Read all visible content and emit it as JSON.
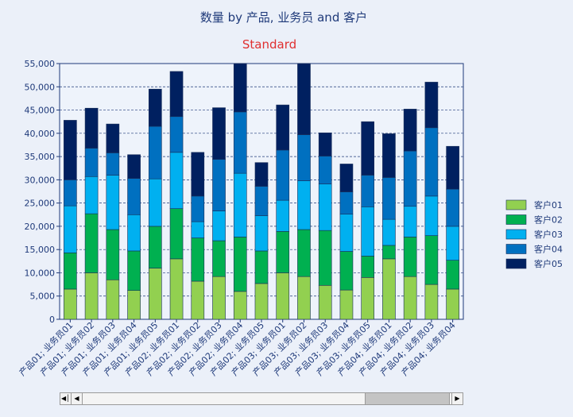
{
  "chart_data": {
    "type": "bar",
    "stacked": true,
    "title": "数量 by 产品, 业务员 and 客户",
    "subtitle": "Standard",
    "xlabel": "",
    "ylabel": "",
    "ylim": [
      0,
      55000
    ],
    "yticks": [
      "0",
      "5,000",
      "10,000",
      "15,000",
      "20,000",
      "25,000",
      "30,000",
      "35,000",
      "40,000",
      "45,000",
      "50,000",
      "55,000"
    ],
    "grid": true,
    "legend_position": "right",
    "categories": [
      "产品01; 业务员01",
      "产品01; 业务员02",
      "产品01; 业务员03",
      "产品01; 业务员04",
      "产品01; 业务员05",
      "产品02; 业务员01",
      "产品02; 业务员02",
      "产品02; 业务员03",
      "产品02; 业务员04",
      "产品02; 业务员05",
      "产品03; 业务员01",
      "产品03; 业务员02",
      "产品03; 业务员03",
      "产品03; 业务员04",
      "产品03; 业务员05",
      "产品04; 业务员01",
      "产品04; 业务员02",
      "产品04; 业务员03",
      "产品04; 业务员04"
    ],
    "series": [
      {
        "name": "客户01",
        "color": "#92d050",
        "values": [
          6500,
          10000,
          8500,
          6200,
          11000,
          13000,
          8200,
          9200,
          6000,
          7700,
          10000,
          9200,
          7300,
          6300,
          9000,
          13000,
          9200,
          7500,
          6500
        ]
      },
      {
        "name": "客户02",
        "color": "#00b050",
        "values": [
          7800,
          12700,
          10800,
          8500,
          9000,
          10800,
          9300,
          7700,
          11700,
          7000,
          8900,
          10100,
          11800,
          8300,
          4600,
          2900,
          8500,
          10500,
          6200
        ]
      },
      {
        "name": "客户03",
        "color": "#00b0f0",
        "values": [
          10100,
          8000,
          11700,
          7800,
          10200,
          12100,
          3500,
          6400,
          13700,
          7600,
          6700,
          10500,
          10000,
          8000,
          10600,
          5600,
          6600,
          8500,
          7300
        ]
      },
      {
        "name": "客户04",
        "color": "#0070c0",
        "values": [
          5600,
          6100,
          4800,
          7800,
          11300,
          7700,
          5500,
          11100,
          13200,
          6300,
          10800,
          9900,
          6000,
          4800,
          6800,
          9000,
          11900,
          14700,
          8000
        ]
      },
      {
        "name": "客户05",
        "color": "#002060",
        "values": [
          12800,
          8600,
          6200,
          5100,
          8000,
          9700,
          9400,
          11100,
          11000,
          5100,
          9700,
          16500,
          5000,
          6000,
          11500,
          9400,
          9000,
          9800,
          9200
        ]
      }
    ]
  }
}
